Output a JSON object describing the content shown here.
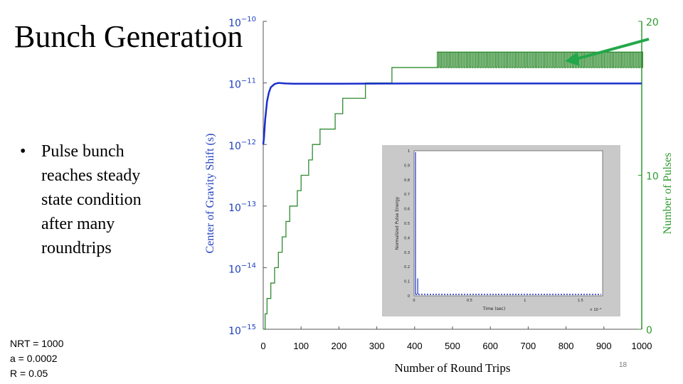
{
  "slide": {
    "title": "Bunch Generation",
    "bullet_symbol": "•",
    "bullet_text": "Pulse bunch reaches steady state condition after many roundtrips",
    "params": [
      "NRT = 1000",
      "a = 0.0002",
      "R = 0.05"
    ],
    "slide_number": "18"
  },
  "colors": {
    "left_axis": "#1f3fbf",
    "right_axis": "#2e9a2e",
    "cog_line": "#1a2fcc",
    "pulses_line": "#2f8a2f",
    "arrow": "#22a84a",
    "inset_bg": "#c9c9c9"
  },
  "chart_data": {
    "type": "line",
    "xlabel": "Number of Round Trips",
    "ylabel_left": "Center of Gravity Shift (s)",
    "ylabel_right": "Number of Pulses",
    "xlim": [
      0,
      1000
    ],
    "x_ticks": [
      "0",
      "100",
      "200",
      "300",
      "400",
      "500",
      "600",
      "700",
      "800",
      "900",
      "1000"
    ],
    "ylim_left": [
      1e-15,
      1e-10
    ],
    "y_scale_left": "log",
    "y_ticks_left": [
      {
        "base": "10",
        "exp": "−10"
      },
      {
        "base": "10",
        "exp": "−11"
      },
      {
        "base": "10",
        "exp": "−12"
      },
      {
        "base": "10",
        "exp": "−13"
      },
      {
        "base": "10",
        "exp": "−14"
      },
      {
        "base": "10",
        "exp": "−15"
      }
    ],
    "ylim_right": [
      0,
      20
    ],
    "y_ticks_right": [
      "0",
      "10",
      "20"
    ],
    "series": [
      {
        "axis": "left",
        "x": [
          0,
          2,
          5,
          10,
          15,
          20,
          30,
          40,
          60,
          80,
          100,
          200,
          400,
          600,
          1000
        ],
        "y": [
          1e-12,
          1.3e-12,
          2.5e-12,
          5e-12,
          7e-12,
          8.5e-12,
          9.6e-12,
          1e-11,
          9.8e-12,
          9.7e-12,
          9.7e-12,
          9.7e-12,
          9.8e-12,
          9.8e-12,
          9.8e-12
        ]
      },
      {
        "axis": "right",
        "x": [
          0,
          5,
          10,
          15,
          20,
          25,
          30,
          35,
          40,
          45,
          50,
          60,
          70,
          80,
          90,
          100,
          110,
          120,
          130,
          140,
          150,
          170,
          190,
          210,
          240,
          270,
          300,
          340,
          380,
          420,
          460,
          500,
          600,
          800,
          1000
        ],
        "y": [
          0,
          1,
          2,
          2,
          3,
          3,
          4,
          4,
          5,
          5,
          6,
          7,
          8,
          8,
          9,
          10,
          10,
          11,
          12,
          12,
          13,
          13,
          14,
          15,
          15,
          16,
          16,
          17,
          17,
          17,
          18,
          18,
          18,
          18,
          18
        ]
      }
    ],
    "inset": {
      "type": "line",
      "ylabel": "Normalized Pulse Energy",
      "xlabel": "Time (sec)",
      "x_exponent": "× 10⁻⁸",
      "x_ticks": [
        "0",
        "0.5",
        "1",
        "1.5"
      ],
      "y_ticks": [
        "0",
        "0.1",
        "0.2",
        "0.3",
        "0.4",
        "0.5",
        "0.6",
        "0.7",
        "0.8",
        "0.9",
        "1"
      ],
      "xlim": [
        0,
        1.7
      ],
      "ylim": [
        0,
        1
      ],
      "peaks": [
        {
          "x": 0.0,
          "y": 1.0
        },
        {
          "x": 0.02,
          "y": 0.13
        }
      ]
    }
  }
}
